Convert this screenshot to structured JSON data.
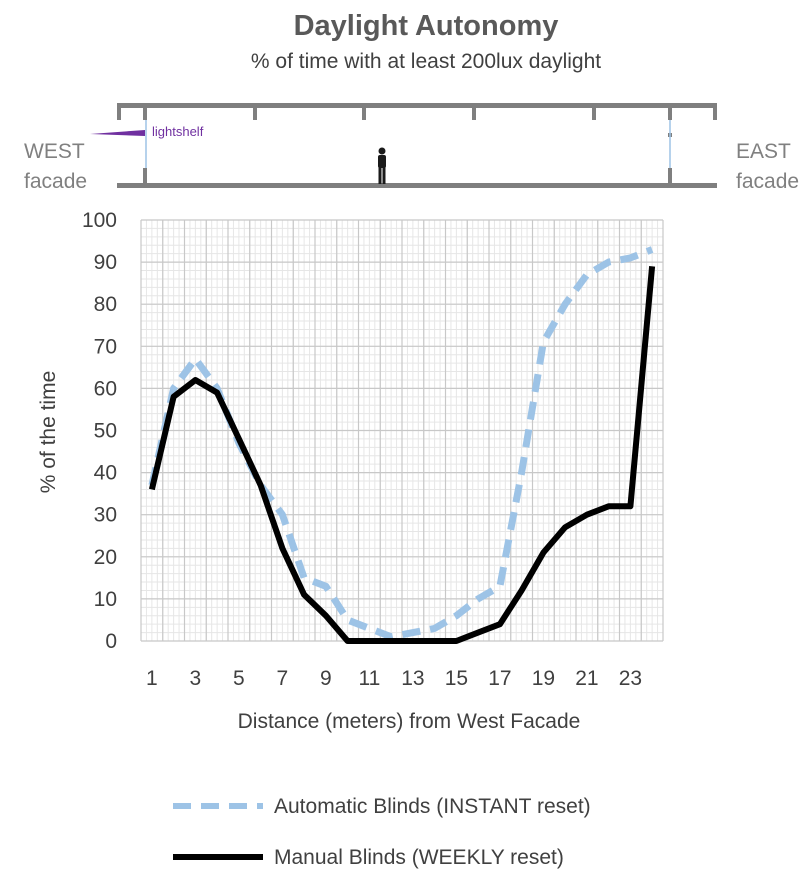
{
  "chart_data": {
    "type": "line",
    "title": "Daylight Autonomy",
    "subtitle": "% of time with at least 200lux daylight",
    "xlabel": "Distance (meters) from West Facade",
    "ylabel": "% of the time",
    "xlim": [
      0.5,
      24.5
    ],
    "ylim": [
      0,
      100
    ],
    "y_ticks": [
      0,
      10,
      20,
      30,
      40,
      50,
      60,
      70,
      80,
      90,
      100
    ],
    "x_ticks": [
      1,
      3,
      5,
      7,
      9,
      11,
      13,
      15,
      17,
      19,
      21,
      23
    ],
    "grid": true,
    "x": [
      1,
      2,
      3,
      4,
      5,
      6,
      7,
      8,
      9,
      10,
      11,
      12,
      13,
      14,
      15,
      16,
      17,
      18,
      19,
      20,
      21,
      22,
      23,
      24
    ],
    "series": [
      {
        "name": "Automatic Blinds (INSTANT reset)",
        "color": "#9dc3e6",
        "style": "dashed",
        "values": [
          37,
          60,
          67,
          60,
          47,
          37,
          30,
          15,
          13,
          5,
          3,
          1,
          2,
          3,
          6,
          10,
          13,
          40,
          71,
          80,
          87,
          90,
          91,
          93
        ]
      },
      {
        "name": "Manual Blinds (WEEKLY reset)",
        "color": "#000000",
        "style": "solid",
        "values": [
          36,
          58,
          62,
          59,
          48,
          37,
          22,
          11,
          6,
          0,
          0,
          0,
          0,
          0,
          0,
          2,
          4,
          12,
          21,
          27,
          30,
          32,
          32,
          89
        ]
      }
    ],
    "legend_position": "bottom"
  },
  "section": {
    "west_line1": "WEST",
    "west_line2": "facade",
    "east_line1": "EAST",
    "east_line2": "facade",
    "lightshelf": "lightshelf",
    "lightshelf_color": "#7030a0"
  }
}
